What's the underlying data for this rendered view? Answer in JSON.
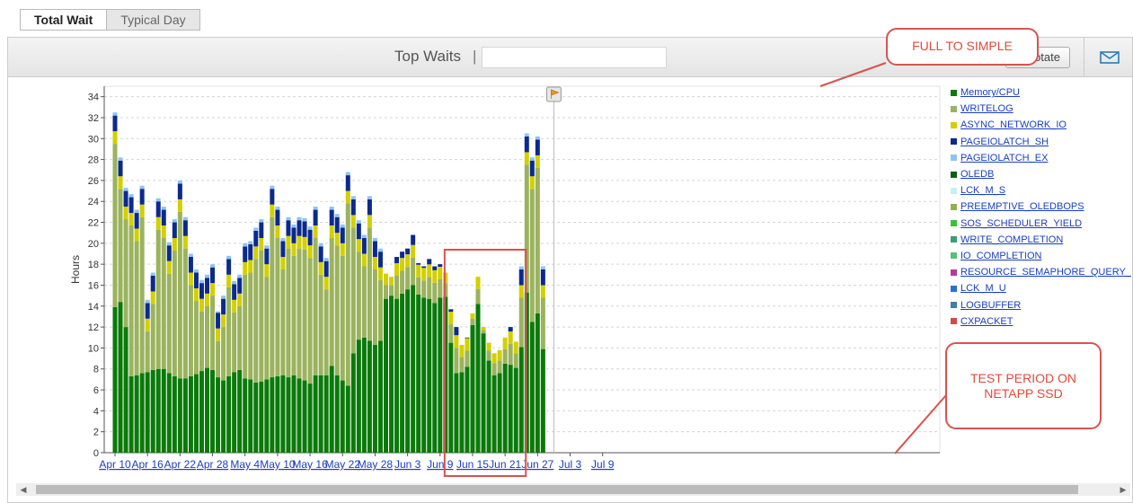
{
  "tabs": [
    {
      "label": "Total Wait",
      "active": true
    },
    {
      "label": "Typical Day",
      "active": false
    }
  ],
  "header": {
    "title": "Top Waits",
    "separator": "|",
    "annotate_label": "otate",
    "mail_icon": "envelope-icon"
  },
  "callouts": {
    "top": "FULL TO SIMPLE",
    "bottom": "TEST PERIOD ON NETAPP SSD"
  },
  "colors": {
    "callout": "#d9534f",
    "link": "#1a3ec2"
  },
  "chart_data": {
    "type": "bar",
    "stacked": true,
    "ylabel": "Hours",
    "xlabel": "",
    "ylim": [
      0,
      35
    ],
    "yticks": [
      0,
      2,
      4,
      6,
      8,
      10,
      12,
      14,
      16,
      18,
      20,
      22,
      24,
      26,
      28,
      30,
      32,
      34
    ],
    "xtick_labels": [
      "Apr 10",
      "Apr 16",
      "Apr 22",
      "Apr 28",
      "May 4",
      "May 10",
      "May 16",
      "May 22",
      "May 28",
      "Jun 3",
      "Jun 9",
      "Jun 15",
      "Jun 21",
      "Jun 27",
      "Jul 3",
      "Jul 9"
    ],
    "grid": true,
    "legend_position": "right",
    "marker_flag_date": "Jun 30",
    "series": [
      {
        "name": "Memory/CPU",
        "color": "#0a7a0a"
      },
      {
        "name": "WRITELOG",
        "color": "#9bb35e"
      },
      {
        "name": "ASYNC_NETWORK_IO",
        "color": "#d4cf00"
      },
      {
        "name": "PAGEIOLATCH_SH",
        "color": "#0b2a8c"
      },
      {
        "name": "PAGEIOLATCH_EX",
        "color": "#8ec4f2"
      },
      {
        "name": "OLEDB",
        "color": "#0b5e1a"
      },
      {
        "name": "LCK_M_S",
        "color": "#c5f1f1"
      },
      {
        "name": "PREEMPTIVE_OLEDBOPS",
        "color": "#95b048"
      },
      {
        "name": "SOS_SCHEDULER_YIELD",
        "color": "#35c435"
      },
      {
        "name": "WRITE_COMPLETION",
        "color": "#3a9e77"
      },
      {
        "name": "IO_COMPLETION",
        "color": "#55c07b"
      },
      {
        "name": "RESOURCE_SEMAPHORE_QUERY_",
        "color": "#b8369e"
      },
      {
        "name": "LCK_M_U",
        "color": "#2a6fd6"
      },
      {
        "name": "LOGBUFFER",
        "color": "#3f7fa8"
      },
      {
        "name": "CXPACKET",
        "color": "#d44a4a"
      }
    ],
    "daily_totals": [
      32.5,
      28.2,
      25.3,
      24.7,
      23.2,
      25.5,
      14.6,
      17.2,
      24.3,
      23.5,
      20.1,
      22.3,
      26.0,
      22.5,
      19.0,
      17.5,
      16.5,
      17.0,
      18.0,
      13.5,
      15.0,
      18.8,
      16.4,
      17.0,
      20.0,
      20.2,
      21.5,
      22.3,
      19.8,
      25.5,
      23.5,
      20.5,
      22.5,
      21.8,
      22.5,
      22.4,
      21.6,
      23.5,
      20.0,
      18.6,
      23.5,
      22.8,
      21.8,
      26.8,
      24.5,
      22.2,
      20.8,
      24.5,
      20.5,
      19.5,
      17.1,
      16.8,
      18.7,
      19.2,
      19.5,
      20.8,
      18.1,
      17.8,
      18.5,
      17.8,
      18.0,
      17.2,
      13.7,
      12.0,
      10.3,
      11.0,
      13.3,
      16.8,
      12.0,
      10.5,
      9.5,
      9.8,
      11.0,
      12.0,
      10.6,
      17.8,
      30.5,
      28.2,
      30.2,
      17.8
    ],
    "memory_cpu_hours": [
      13.9,
      14.4,
      12.0,
      7.3,
      7.4,
      7.6,
      7.7,
      7.9,
      8.0,
      8.0,
      7.6,
      7.3,
      7.1,
      7.1,
      7.3,
      7.5,
      7.8,
      8.1,
      7.9,
      7.2,
      6.9,
      7.3,
      7.7,
      7.9,
      7.1,
      7.0,
      6.7,
      6.8,
      7.0,
      7.2,
      7.3,
      7.4,
      7.2,
      7.4,
      7.1,
      6.9,
      6.6,
      7.4,
      7.4,
      7.4,
      8.3,
      7.4,
      6.9,
      6.4,
      9.5,
      10.8,
      11.0,
      10.7,
      10.3,
      10.7,
      14.7,
      15.0,
      14.7,
      15.2,
      15.6,
      16.0,
      15.1,
      14.8,
      14.7,
      14.3,
      14.8,
      14.9,
      10.5,
      7.6,
      7.7,
      8.2,
      12.2,
      14.2,
      11.4,
      8.8,
      7.4,
      7.6,
      8.5,
      8.4,
      8.1,
      10.1,
      15.3,
      12.5,
      13.3,
      9.9
    ]
  }
}
